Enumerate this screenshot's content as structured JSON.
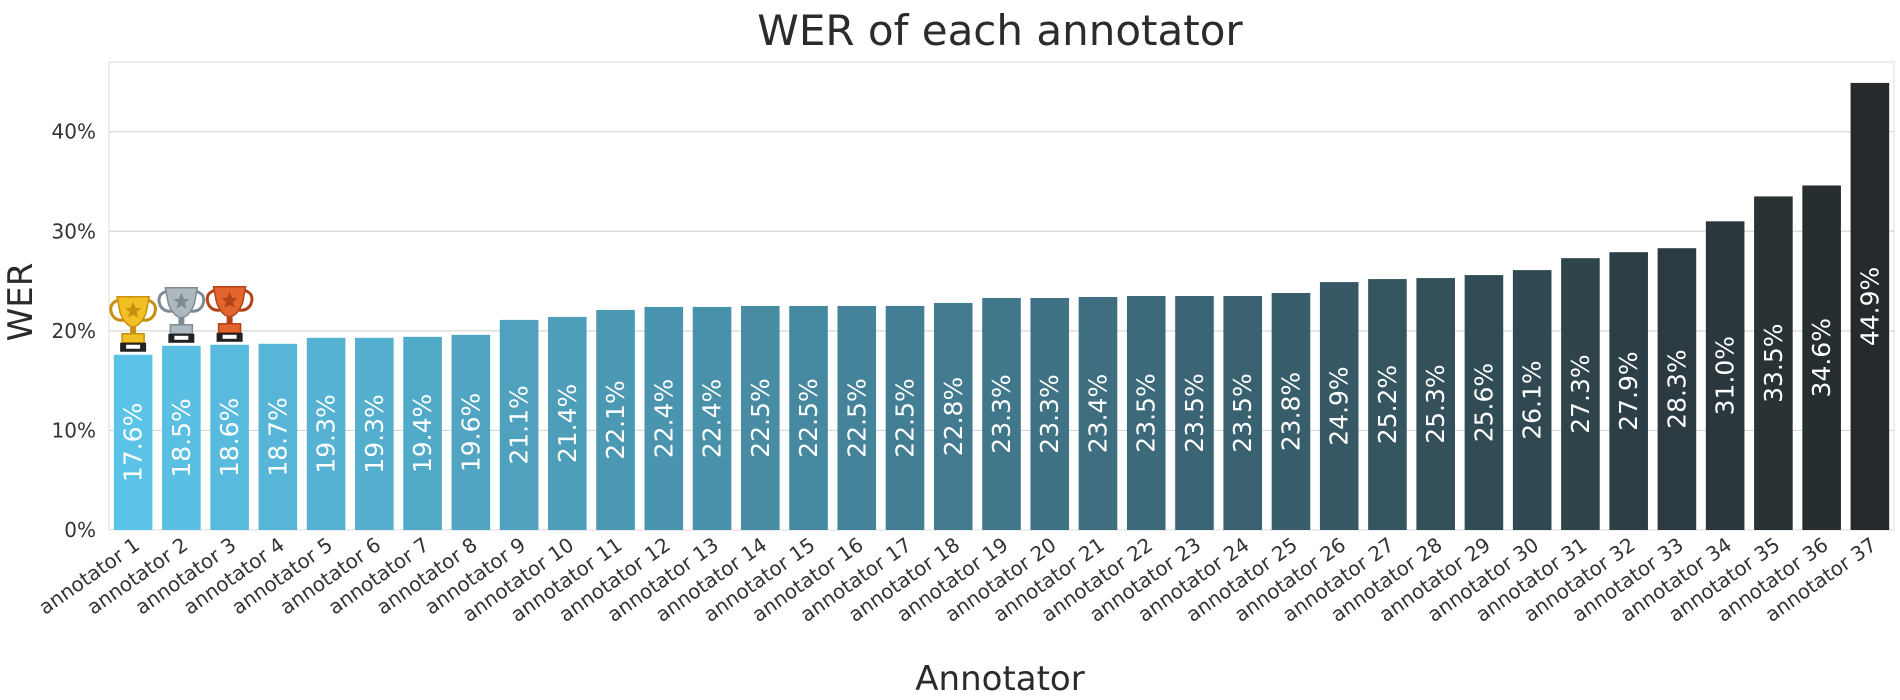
{
  "chart_data": {
    "type": "bar",
    "title": "WER of each annotator",
    "xlabel": "Annotator",
    "ylabel": "WER",
    "ylim": [
      0,
      47
    ],
    "y_ticks": [
      0,
      10,
      20,
      30,
      40
    ],
    "y_tick_suffix": "%",
    "grid": "horizontal",
    "categories": [
      "annotator 1",
      "annotator 2",
      "annotator 3",
      "annotator 4",
      "annotator 5",
      "annotator 6",
      "annotator 7",
      "annotator 8",
      "annotator 9",
      "annotator 10",
      "annotator 11",
      "annotator 12",
      "annotator 13",
      "annotator 14",
      "annotator 15",
      "annotator 16",
      "annotator 17",
      "annotator 18",
      "annotator 19",
      "annotator 20",
      "annotator 21",
      "annotator 22",
      "annotator 23",
      "annotator 24",
      "annotator 25",
      "annotator 26",
      "annotator 27",
      "annotator 28",
      "annotator 29",
      "annotator 30",
      "annotator 31",
      "annotator 32",
      "annotator 33",
      "annotator 34",
      "annotator 35",
      "annotator 36",
      "annotator 37"
    ],
    "values": [
      17.6,
      18.5,
      18.6,
      18.7,
      19.3,
      19.3,
      19.4,
      19.6,
      21.1,
      21.4,
      22.1,
      22.4,
      22.4,
      22.5,
      22.5,
      22.5,
      22.5,
      22.8,
      23.3,
      23.3,
      23.4,
      23.5,
      23.5,
      23.5,
      23.8,
      24.9,
      25.2,
      25.3,
      25.6,
      26.1,
      27.3,
      27.9,
      28.3,
      31.0,
      33.5,
      34.6,
      44.9
    ],
    "data_labels": [
      "17.6%",
      "18.5%",
      "18.6%",
      "18.7%",
      "19.3%",
      "19.3%",
      "19.4%",
      "19.6%",
      "21.1%",
      "21.4%",
      "22.1%",
      "22.4%",
      "22.4%",
      "22.5%",
      "22.5%",
      "22.5%",
      "22.5%",
      "22.8%",
      "23.3%",
      "23.3%",
      "23.4%",
      "23.5%",
      "23.5%",
      "23.5%",
      "23.8%",
      "24.9%",
      "25.2%",
      "25.3%",
      "25.6%",
      "26.1%",
      "27.3%",
      "27.9%",
      "28.3%",
      "31.0%",
      "33.5%",
      "34.6%",
      "44.9%"
    ],
    "color_start": "#5bc3e8",
    "color_end": "#262a2c",
    "grid_color": "#d7d7d7",
    "frame_color": "#dddddd",
    "trophies": [
      {
        "rank": 1,
        "icon": "gold-trophy-icon",
        "color": "#f2bf25",
        "dark": "#c98f0e"
      },
      {
        "rank": 2,
        "icon": "silver-trophy-icon",
        "color": "#aeb8bf",
        "dark": "#7f8b93"
      },
      {
        "rank": 3,
        "icon": "bronze-trophy-icon",
        "color": "#e3652e",
        "dark": "#b54318"
      }
    ]
  }
}
